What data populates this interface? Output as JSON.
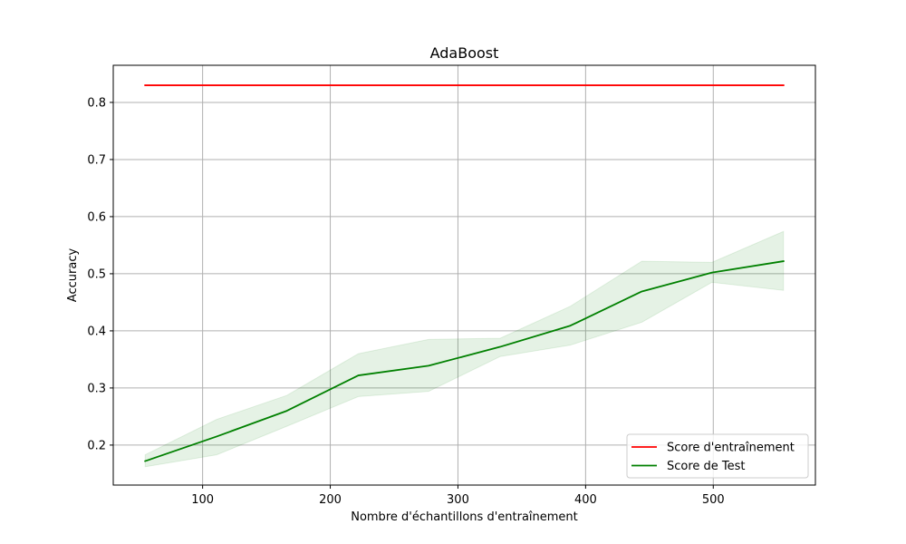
{
  "chart_data": {
    "type": "line",
    "title": "AdaBoost",
    "xlabel": "Nombre d'échantillons d'entraînement",
    "ylabel": "Accuracy",
    "xlim": [
      30,
      580
    ],
    "ylim": [
      0.13,
      0.865
    ],
    "xticks": [
      100,
      200,
      300,
      400,
      500
    ],
    "yticks": [
      0.2,
      0.3,
      0.4,
      0.5,
      0.6,
      0.7,
      0.8
    ],
    "grid": true,
    "legend_position": "lower-right",
    "x": [
      55,
      111,
      166,
      222,
      277,
      333,
      388,
      444,
      499,
      555
    ],
    "series": [
      {
        "name": "Score d'entraînement",
        "color": "#ff0000",
        "values": [
          0.83,
          0.83,
          0.83,
          0.83,
          0.83,
          0.83,
          0.83,
          0.83,
          0.83,
          0.83
        ]
      },
      {
        "name": "Score de Test",
        "color": "#008000",
        "values": [
          0.172,
          0.215,
          0.26,
          0.322,
          0.339,
          0.372,
          0.409,
          0.469,
          0.502,
          0.522
        ],
        "band_lower": [
          0.162,
          0.183,
          0.233,
          0.285,
          0.294,
          0.355,
          0.375,
          0.415,
          0.485,
          0.471
        ],
        "band_upper": [
          0.183,
          0.245,
          0.287,
          0.36,
          0.385,
          0.387,
          0.443,
          0.522,
          0.52,
          0.574
        ],
        "band_color": "#008000"
      }
    ]
  }
}
